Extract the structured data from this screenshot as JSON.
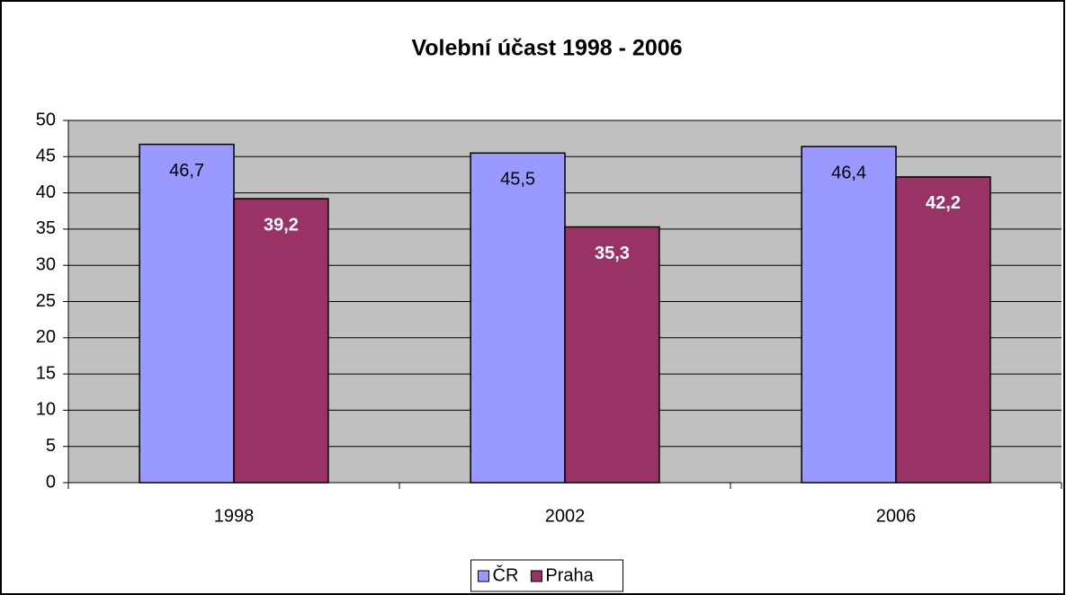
{
  "chart_data": {
    "type": "bar",
    "title": "Volební účast 1998 - 2006",
    "categories": [
      "1998",
      "2002",
      "2006"
    ],
    "series": [
      {
        "name": "ČR",
        "color": "#9999ff",
        "values": [
          46.7,
          45.5,
          46.4
        ],
        "value_labels": [
          "46,7",
          "45,5",
          "46,4"
        ]
      },
      {
        "name": "Praha",
        "color": "#993366",
        "values": [
          39.2,
          35.3,
          42.2
        ],
        "value_labels": [
          "39,2",
          "35,3",
          "42,2"
        ]
      }
    ],
    "ylim": [
      0,
      50
    ],
    "yticks": [
      0,
      5,
      10,
      15,
      20,
      25,
      30,
      35,
      40,
      45,
      50
    ],
    "grid": true,
    "legend": "bottom"
  }
}
